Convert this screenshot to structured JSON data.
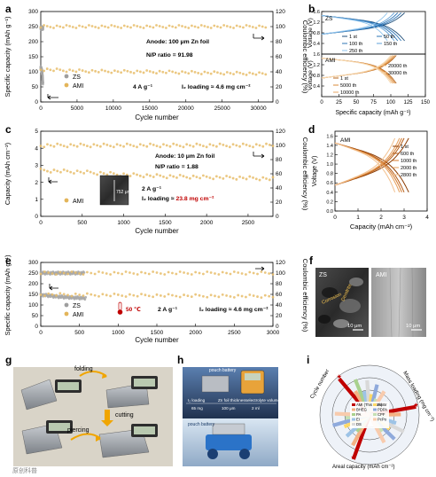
{
  "panels": {
    "a": {
      "label": "a",
      "ylabel": "Specific capacity (mAh g⁻¹)",
      "y2label": "Coulombic efficiency (%)",
      "xlabel": "Cycle number",
      "anode": "Anode: 100 μm Zn foil",
      "np_ratio": "N/P ratio = 91.98",
      "rate": "4 A g⁻¹",
      "loading": "I₂ loading ≈ 4.6 mg cm⁻²",
      "legend": [
        "ZS",
        "AMI"
      ]
    },
    "b": {
      "label": "b",
      "ylabel": "Voltage (V)",
      "xlabel": "Specific capacity (mAh g⁻¹)",
      "top_title": "ZS",
      "bottom_title": "AMI",
      "zs_legend": [
        "1 st",
        "50 th",
        "100 th",
        "150 th",
        "250 th"
      ],
      "ami_legend": [
        "20000 th",
        "30000 th",
        "1 st",
        "5000 th",
        "10000 th"
      ]
    },
    "c": {
      "label": "c",
      "ylabel": "Capacity (mAh cm⁻²)",
      "y2label": "Coulombic efficiency (%)",
      "xlabel": "Cycle number",
      "anode": "Anode: 10 μm Zn foil",
      "np_ratio": "N/P ratio = 1.88",
      "rate": "2 A g⁻¹",
      "loading": "I₂ loading ≈ 23.8 mg cm⁻²",
      "legend": [
        "AMI"
      ],
      "inset_label": "752 μm"
    },
    "d": {
      "label": "d",
      "ylabel": "Voltage (V)",
      "xlabel": "Capacity (mAh cm⁻²)",
      "title": "AMI",
      "legend": [
        "1 st",
        "600 th",
        "1000 th",
        "2000 th",
        "2800 th"
      ]
    },
    "e": {
      "label": "e",
      "ylabel": "Specific capacity (mAh g⁻¹)",
      "y2label": "Coulombic efficiency (%)",
      "xlabel": "Cycle number",
      "temp": "50 ℃",
      "rate": "2 A g⁻¹",
      "loading": "I₂ loading ≈ 4.6 mg cm⁻²",
      "legend": [
        "ZS",
        "AMI"
      ]
    },
    "f": {
      "label": "f",
      "left_title": "ZS",
      "right_title": "AMI",
      "annotation_1": "Corrosion",
      "annotation_2": "Dendrite",
      "scalebar_left": "10 μm",
      "scalebar_right": "10 μm"
    },
    "g": {
      "label": "g",
      "folding": "folding",
      "cutting": "cutting",
      "piercing": "piercing"
    },
    "h": {
      "label": "h",
      "pouch_top": "pouch battery",
      "pouch_bottom": "pouch battery",
      "table_row1": [
        "I₂ loading",
        "Zn foil thickness",
        "electrolyte volume"
      ],
      "table_row2": [
        "65 mg",
        "100 μm",
        "2 ml"
      ]
    },
    "i": {
      "label": "i",
      "axis_cycle": "Cycle number",
      "axis_mass": "Mass loading (mg cm⁻²)",
      "axis_areal": "Areal capacity (mAh cm⁻²)",
      "legend": [
        "AMI (This work)",
        "BHEG",
        "PA",
        "EI",
        "DS",
        "BmBr",
        "PDPA",
        "CPF",
        "PcPo"
      ]
    },
    "watermark": "原创科普"
  },
  "chart_data": [
    {
      "panel": "a",
      "type": "scatter",
      "x_range": [
        0,
        32000
      ],
      "y_range": [
        0,
        300
      ],
      "y2_range": [
        0,
        120
      ],
      "xticks": [
        0,
        5000,
        10000,
        15000,
        20000,
        25000,
        30000
      ],
      "yticks": [
        0,
        50,
        100,
        150,
        200,
        250,
        300
      ],
      "y2ticks": [
        0,
        20,
        40,
        60,
        80,
        100,
        120
      ],
      "series": [
        {
          "name": "ZS",
          "axis": "left",
          "x": [
            0,
            100,
            200,
            250,
            300
          ],
          "y": [
            113,
            108,
            95,
            80,
            60
          ]
        },
        {
          "name": "AMI",
          "axis": "left",
          "x": [
            0,
            5000,
            10000,
            15000,
            20000,
            25000,
            31000
          ],
          "y": [
            108,
            103,
            101,
            100,
            98,
            96,
            93
          ]
        },
        {
          "name": "CE ZS",
          "axis": "right",
          "x": [
            0,
            300
          ],
          "y": [
            98,
            98
          ]
        },
        {
          "name": "CE AMI",
          "axis": "right",
          "x": [
            0,
            31000
          ],
          "y": [
            100,
            100
          ]
        }
      ]
    },
    {
      "panel": "b",
      "type": "line",
      "x_range": [
        0,
        150
      ],
      "y_range_top": [
        0.0,
        1.6
      ],
      "y_range_bottom": [
        0.0,
        1.6
      ],
      "xticks": [
        0,
        25,
        50,
        75,
        100,
        125,
        150
      ],
      "yticks": [
        0.4,
        0.8,
        1.2,
        1.6
      ]
    },
    {
      "panel": "c",
      "type": "scatter",
      "x_range": [
        0,
        2800
      ],
      "y_range": [
        0,
        5
      ],
      "y2_range": [
        0,
        120
      ],
      "xticks": [
        0,
        500,
        1000,
        1500,
        2000,
        2500
      ],
      "yticks": [
        0,
        1,
        2,
        3,
        4,
        5
      ],
      "y2ticks": [
        0,
        20,
        40,
        60,
        80,
        100,
        120
      ],
      "series": [
        {
          "name": "AMI",
          "axis": "left",
          "x": [
            0,
            500,
            1000,
            1500,
            2000,
            2500,
            2800
          ],
          "y": [
            2.7,
            2.6,
            2.45,
            2.35,
            2.3,
            2.25,
            2.2
          ]
        },
        {
          "name": "CE AMI",
          "axis": "right",
          "x": [
            0,
            2800
          ],
          "y": [
            100,
            100
          ]
        }
      ]
    },
    {
      "panel": "d",
      "type": "line",
      "x_range": [
        0,
        4
      ],
      "y_range": [
        0.0,
        1.7
      ],
      "xticks": [
        0,
        1,
        2,
        3,
        4
      ],
      "yticks": [
        0.0,
        0.2,
        0.4,
        0.6,
        0.8,
        1.0,
        1.2,
        1.4,
        1.6
      ],
      "series": [
        {
          "name": "1 st",
          "capacity": 3.2
        },
        {
          "name": "600 th",
          "capacity": 3.0
        },
        {
          "name": "1000 th",
          "capacity": 2.9
        },
        {
          "name": "2000 th",
          "capacity": 2.8
        },
        {
          "name": "2800 th",
          "capacity": 2.6
        }
      ]
    },
    {
      "panel": "e",
      "type": "scatter",
      "x_range": [
        0,
        3000
      ],
      "y_range": [
        0,
        300
      ],
      "y2_range": [
        0,
        120
      ],
      "xticks": [
        0,
        500,
        1000,
        1500,
        2000,
        2500,
        3000
      ],
      "yticks": [
        0,
        50,
        100,
        150,
        200,
        250,
        300
      ],
      "y2ticks": [
        0,
        20,
        40,
        60,
        80,
        100,
        120
      ],
      "series": [
        {
          "name": "ZS",
          "axis": "left",
          "x": [
            0,
            200,
            400,
            580
          ],
          "y": [
            148,
            140,
            135,
            132
          ]
        },
        {
          "name": "AMI",
          "axis": "left",
          "x": [
            0,
            1000,
            2000,
            3000
          ],
          "y": [
            150,
            146,
            143,
            141
          ]
        },
        {
          "name": "CE ZS",
          "axis": "right",
          "x": [
            0,
            560
          ],
          "y": [
            100,
            100
          ]
        },
        {
          "name": "CE AMI",
          "axis": "right",
          "x": [
            0,
            3000
          ],
          "y": [
            100,
            100
          ]
        }
      ]
    }
  ]
}
